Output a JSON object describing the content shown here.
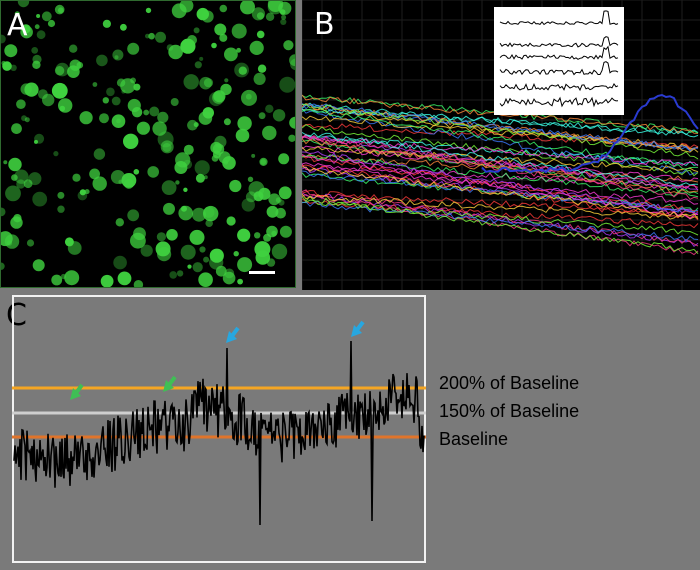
{
  "panels": {
    "a": {
      "letter": "A"
    },
    "b": {
      "letter": "B"
    },
    "c": {
      "letter": "C"
    }
  },
  "thresholds": [
    {
      "label": "200% of Baseline",
      "color": "#f5a623"
    },
    {
      "label": "150% of Baseline",
      "color": "#cfcfcf"
    },
    {
      "label": "Baseline",
      "color": "#e0742a"
    }
  ],
  "colors": {
    "cells": "#3fd13f",
    "arrow_green": "#3fbf55",
    "arrow_blue": "#27a7e0",
    "trace": "#000000"
  }
}
